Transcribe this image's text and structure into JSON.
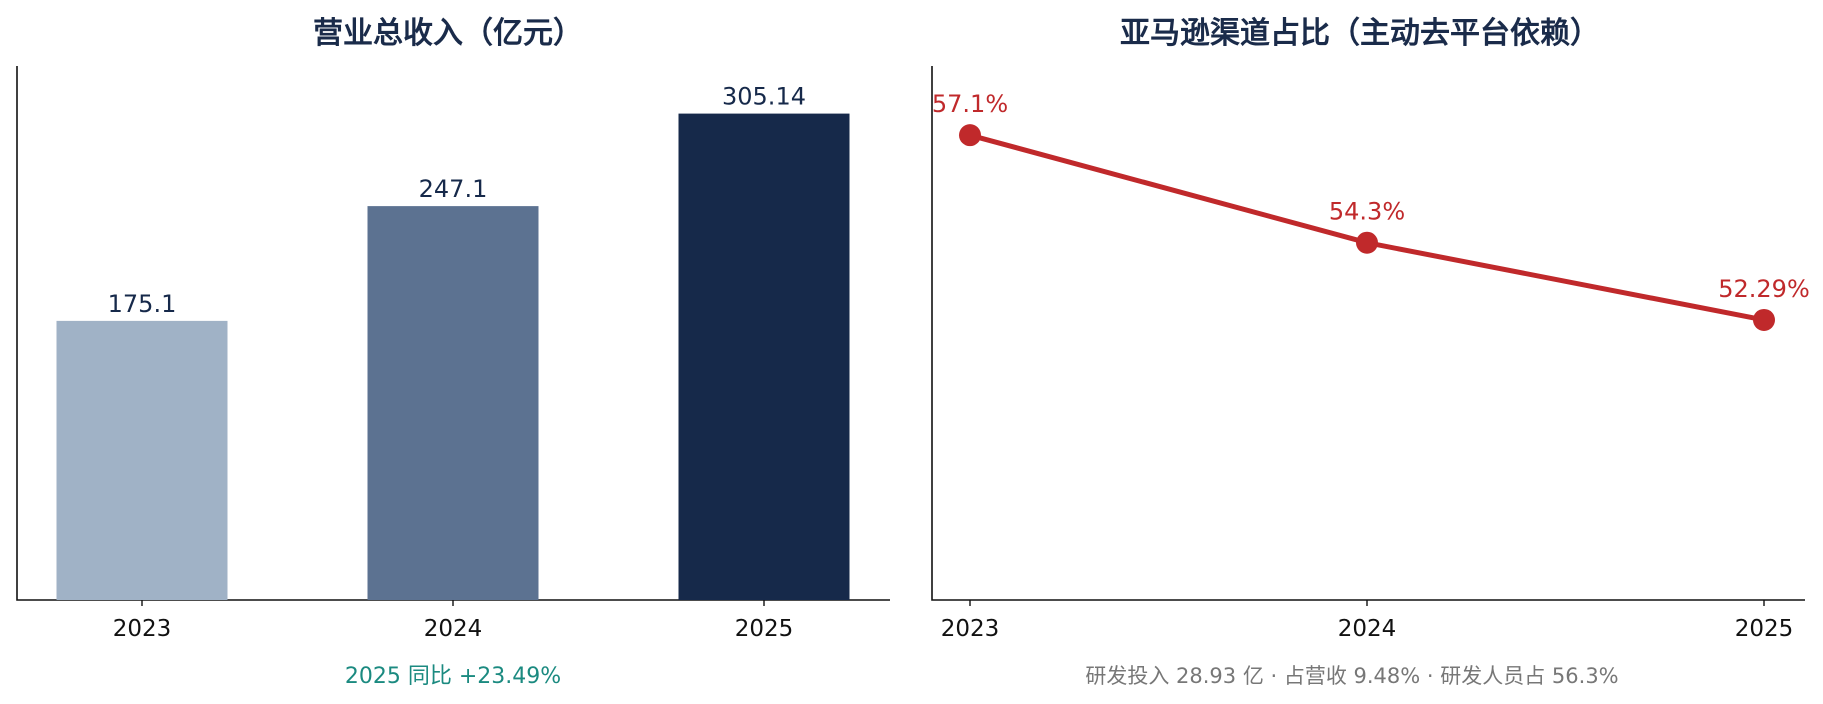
{
  "chart_data": [
    {
      "type": "bar",
      "title": "营业总收入（亿元）",
      "categories": [
        "2023",
        "2024",
        "2025"
      ],
      "values": [
        175.1,
        247.1,
        305.14
      ],
      "value_labels": [
        "175.1",
        "247.1",
        "305.14"
      ],
      "colors": [
        "#a0b2c6",
        "#5c7291",
        "#16294a"
      ],
      "ylim": [
        0,
        335
      ],
      "grid": false,
      "footnote": "2025 同比 +23.49%"
    },
    {
      "type": "line",
      "title": "亚马逊渠道占比（主动去平台依赖）",
      "categories": [
        "2023",
        "2024",
        "2025"
      ],
      "values": [
        57.1,
        54.3,
        52.29
      ],
      "value_labels": [
        "57.1%",
        "54.3%",
        "52.29%"
      ],
      "color": "#c0292b",
      "ylim": [
        45.0,
        58.9
      ],
      "grid": false,
      "footnote": "研发投入 28.93 亿 ·  占营收 9.48% ·  研发人员占 56.3%"
    }
  ]
}
